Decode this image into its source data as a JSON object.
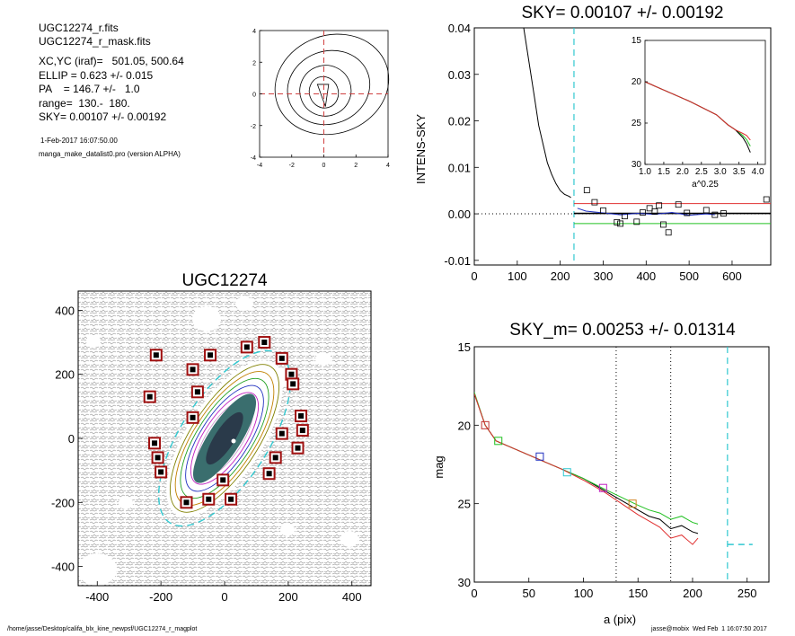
{
  "header": {
    "line1": "UGC12274_r.fits",
    "line2": "UGC12274_r_mask.fits",
    "line3": "XC,YC (iraf)=   501.05, 500.64",
    "line4": "ELLIP = 0.623 +/- 0.015",
    "line5": "PA    = 146.7 +/-   1.0",
    "line6": "range=  130.-  180.",
    "line7": "SKY= 0.00107 +/- 0.00192",
    "date": "1-Feb-2017 16:07:50.00",
    "program": "manga_make_datalist0.pro (version ALPHA)"
  },
  "footer": {
    "left": "/home/jasse/Desktop/califa_blx_kine_newpsf/UGC12274_r_magplot",
    "right": "jasse@mobix  Wed Feb  1 16:07:50 2017"
  },
  "colors": {
    "sky_line": "#e03030",
    "green": "#20c020",
    "blue": "#2030c0",
    "cyan": "#30c8d0",
    "magenta": "#c020c0",
    "orange": "#d08020",
    "mask_box": "#a01010"
  },
  "chart_data": [
    {
      "id": "contour_inset",
      "type": "contour",
      "title": "",
      "xlim": [
        -4,
        4
      ],
      "ylim": [
        -4,
        4
      ],
      "xticks": [
        "-4",
        "-2",
        "0",
        "2",
        "4"
      ],
      "yticks": [
        "4",
        "2",
        "0",
        "-2",
        "-4"
      ],
      "crosshair": {
        "x": 0,
        "y": 0,
        "color": "#d04040"
      }
    },
    {
      "id": "sky_profile",
      "type": "line",
      "title": "SKY= 0.00107 +/- 0.00192",
      "xlabel": "",
      "ylabel": "INTENS-SKY",
      "xlim": [
        0,
        690
      ],
      "ylim": [
        -0.011,
        0.04
      ],
      "xticks": [
        "0",
        "100",
        "200",
        "300",
        "400",
        "500",
        "600"
      ],
      "yticks": [
        "0.04",
        "0.03",
        "0.02",
        "0.01",
        "0.00",
        "-0.01"
      ],
      "profile": {
        "x": [
          115,
          130,
          140,
          150,
          160,
          170,
          180,
          190,
          200,
          210,
          220,
          225
        ],
        "y": [
          0.04,
          0.031,
          0.025,
          0.019,
          0.015,
          0.011,
          0.0085,
          0.0065,
          0.005,
          0.0042,
          0.0038,
          0.0035
        ]
      },
      "sky_level": 0.00107,
      "sky_upper": 0.0022,
      "sky_lower": -0.0021,
      "range_marker": 232,
      "boxes": {
        "x": [
          262,
          280,
          300,
          332,
          340,
          350,
          378,
          392,
          408,
          420,
          430,
          440,
          452,
          475,
          495,
          540,
          560,
          580,
          680
        ],
        "y": [
          0.0051,
          0.0025,
          0.0007,
          -0.0018,
          -0.0021,
          -0.0005,
          -0.0017,
          0.0003,
          0.0012,
          0.0005,
          0.0018,
          -0.0023,
          -0.004,
          0.002,
          0.0002,
          0.0008,
          -0.0002,
          0.0001,
          0.0031
        ]
      }
    },
    {
      "id": "sky_inset",
      "type": "line",
      "title": "",
      "xlabel": "a^0.25",
      "xlim": [
        1.0,
        4.2
      ],
      "ylim": [
        30,
        15
      ],
      "xticks": [
        "1.0",
        "1.5",
        "2.0",
        "2.5",
        "3.0",
        "3.5",
        "4.0"
      ],
      "yticks": [
        "15",
        "20",
        "25",
        "30"
      ],
      "x": [
        1.0,
        1.4,
        1.8,
        2.2,
        2.6,
        2.9,
        3.2,
        3.4,
        3.6,
        3.7,
        3.8
      ],
      "y": [
        20.0,
        20.8,
        21.6,
        22.4,
        23.3,
        24.0,
        25.2,
        25.8,
        26.5,
        27.0,
        27.8
      ]
    },
    {
      "id": "galaxy_image",
      "type": "image",
      "title": "UGC12274",
      "xlim": [
        -460,
        460
      ],
      "ylim": [
        -460,
        460
      ],
      "xticks": [
        "-400",
        "-200",
        "0",
        "200",
        "400"
      ],
      "yticks": [
        "400",
        "200",
        "0",
        "-200",
        "-400"
      ],
      "ellipse": {
        "a": 180,
        "ellipticity": 0.623,
        "pa": 146.7
      },
      "masked_boxes": [
        [
          -215,
          260
        ],
        [
          -45,
          260
        ],
        [
          70,
          285
        ],
        [
          125,
          300
        ],
        [
          180,
          250
        ],
        [
          -235,
          130
        ],
        [
          -100,
          215
        ],
        [
          -85,
          145
        ],
        [
          -100,
          65
        ],
        [
          210,
          200
        ],
        [
          215,
          170
        ],
        [
          240,
          70
        ],
        [
          245,
          25
        ],
        [
          180,
          15
        ],
        [
          -220,
          -15
        ],
        [
          -210,
          -60
        ],
        [
          -200,
          -105
        ],
        [
          160,
          -60
        ],
        [
          230,
          -30
        ],
        [
          140,
          -110
        ],
        [
          -50,
          -190
        ],
        [
          20,
          -190
        ],
        [
          -120,
          -200
        ],
        [
          -5,
          -130
        ]
      ]
    },
    {
      "id": "mag_profile",
      "type": "line",
      "title": "SKY_m=  0.00253 +/- 0.01314",
      "xlabel": "a (pix)",
      "ylabel": "mag",
      "xlim": [
        0,
        270
      ],
      "ylim": [
        30,
        15
      ],
      "xticks": [
        "0",
        "50",
        "100",
        "150",
        "200",
        "250"
      ],
      "yticks": [
        "15",
        "20",
        "25",
        "30"
      ],
      "range_lines": [
        130,
        180
      ],
      "sky_marker_x": 232,
      "sky_marker_level": {
        "x": [
          232,
          255
        ],
        "y": [
          27.6,
          27.6
        ]
      },
      "series": [
        {
          "name": "",
          "color": "#000000",
          "x": [
            0,
            10,
            20,
            40,
            60,
            80,
            100,
            120,
            135,
            150,
            160,
            170,
            180,
            190,
            200,
            205
          ],
          "y": [
            18.0,
            20.0,
            21.0,
            21.6,
            22.2,
            22.8,
            23.4,
            24.2,
            24.8,
            25.4,
            25.8,
            26.0,
            26.6,
            26.4,
            26.8,
            26.9
          ]
        },
        {
          "name": "",
          "color": "#20c020",
          "x": [
            0,
            10,
            20,
            40,
            60,
            80,
            100,
            120,
            135,
            150,
            160,
            170,
            180,
            190,
            200,
            205
          ],
          "y": [
            17.9,
            20.0,
            21.0,
            21.6,
            22.2,
            22.8,
            23.4,
            24.1,
            24.6,
            25.1,
            25.4,
            25.6,
            26.0,
            25.8,
            26.2,
            26.3
          ]
        },
        {
          "name": "",
          "color": "#e03030",
          "x": [
            0,
            10,
            20,
            40,
            60,
            80,
            100,
            120,
            135,
            150,
            160,
            170,
            180,
            190,
            200,
            205
          ],
          "y": [
            18.0,
            20.0,
            21.0,
            21.6,
            22.2,
            22.8,
            23.5,
            24.3,
            25.0,
            25.7,
            26.1,
            26.5,
            27.2,
            27.0,
            27.6,
            27.2
          ]
        }
      ],
      "markers": [
        {
          "x": 10,
          "y": 20.0,
          "color": "#c03030"
        },
        {
          "x": 22,
          "y": 21.0,
          "color": "#20c020"
        },
        {
          "x": 60,
          "y": 22.0,
          "color": "#2030c0"
        },
        {
          "x": 85,
          "y": 23.0,
          "color": "#30c8d0"
        },
        {
          "x": 118,
          "y": 24.0,
          "color": "#c020c0"
        },
        {
          "x": 145,
          "y": 25.0,
          "color": "#d08020"
        }
      ]
    }
  ]
}
